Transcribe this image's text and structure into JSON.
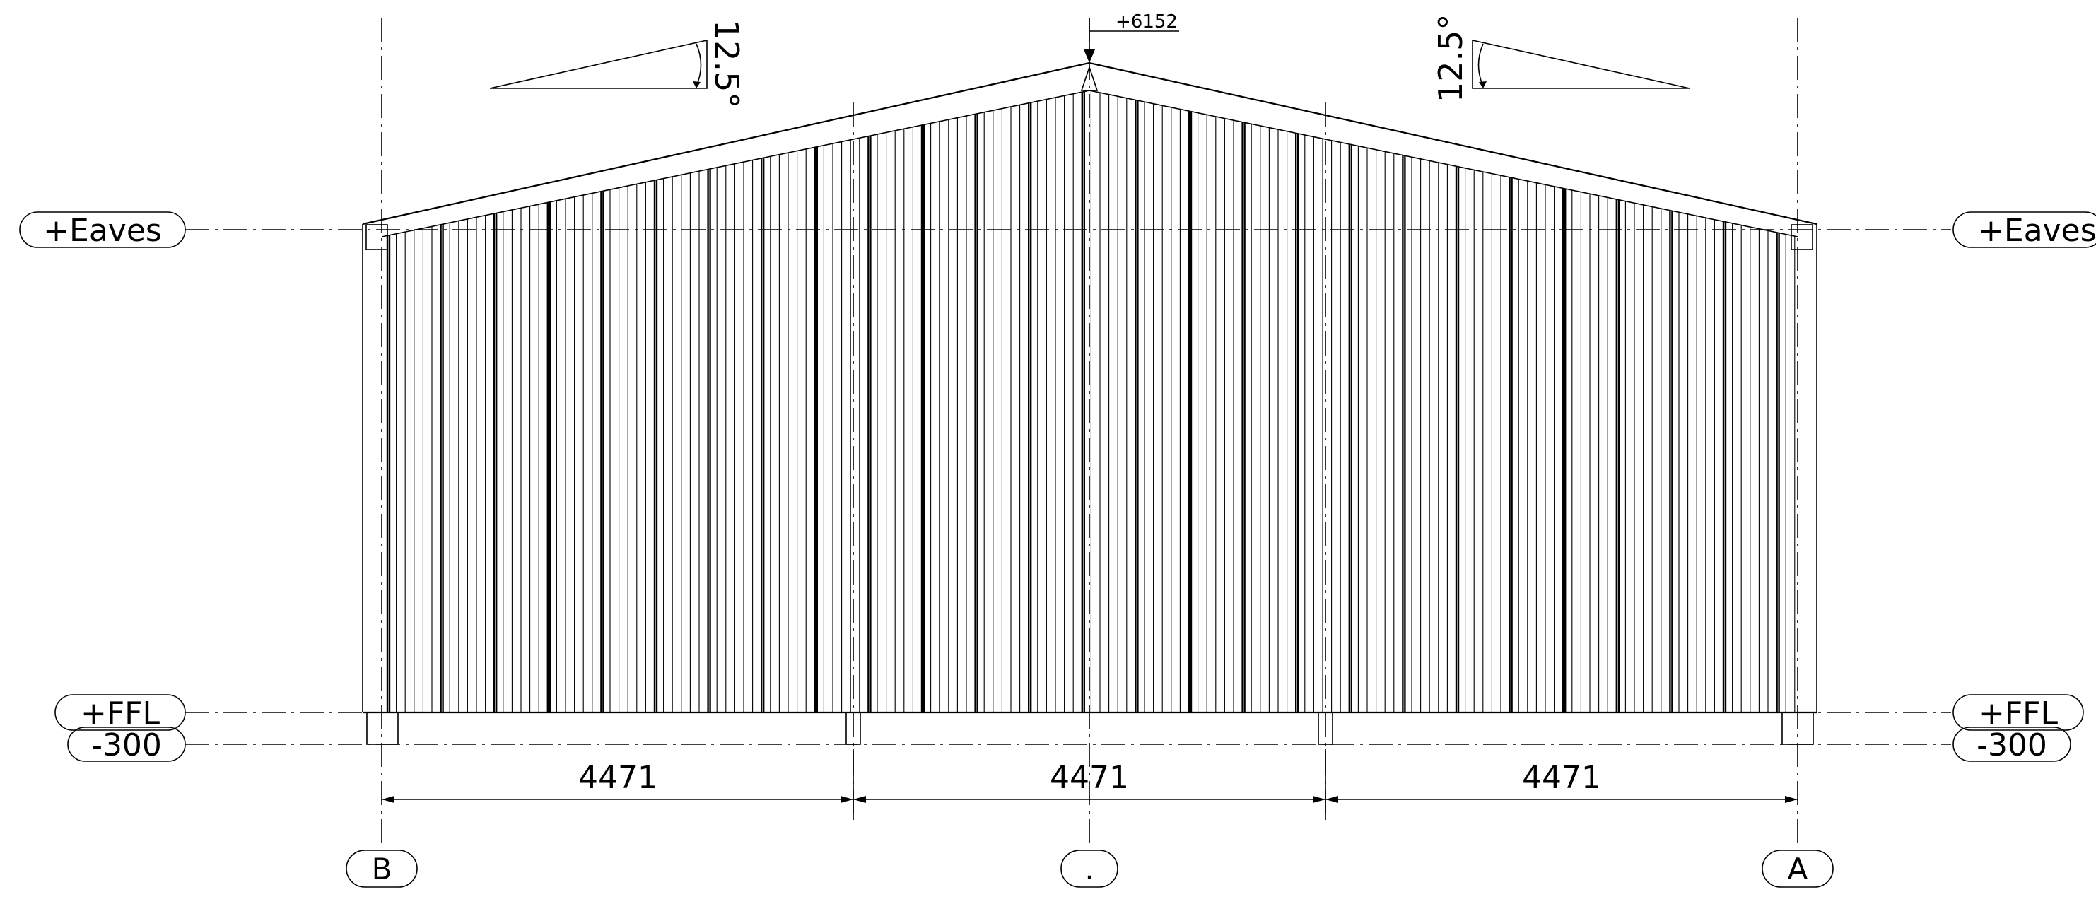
{
  "levels": {
    "eaves_label": "+Eaves",
    "ffl_label": "+FFL",
    "footing_label": "-300"
  },
  "ridge": {
    "level_label": "+6152"
  },
  "roof_pitch": {
    "left_label": "12.5°",
    "right_label": "12.5°"
  },
  "dimensions": {
    "bays": [
      "4471",
      "4471",
      "4471"
    ]
  },
  "grid_bubbles": {
    "left": "B",
    "middle": ".",
    "right": "A"
  }
}
